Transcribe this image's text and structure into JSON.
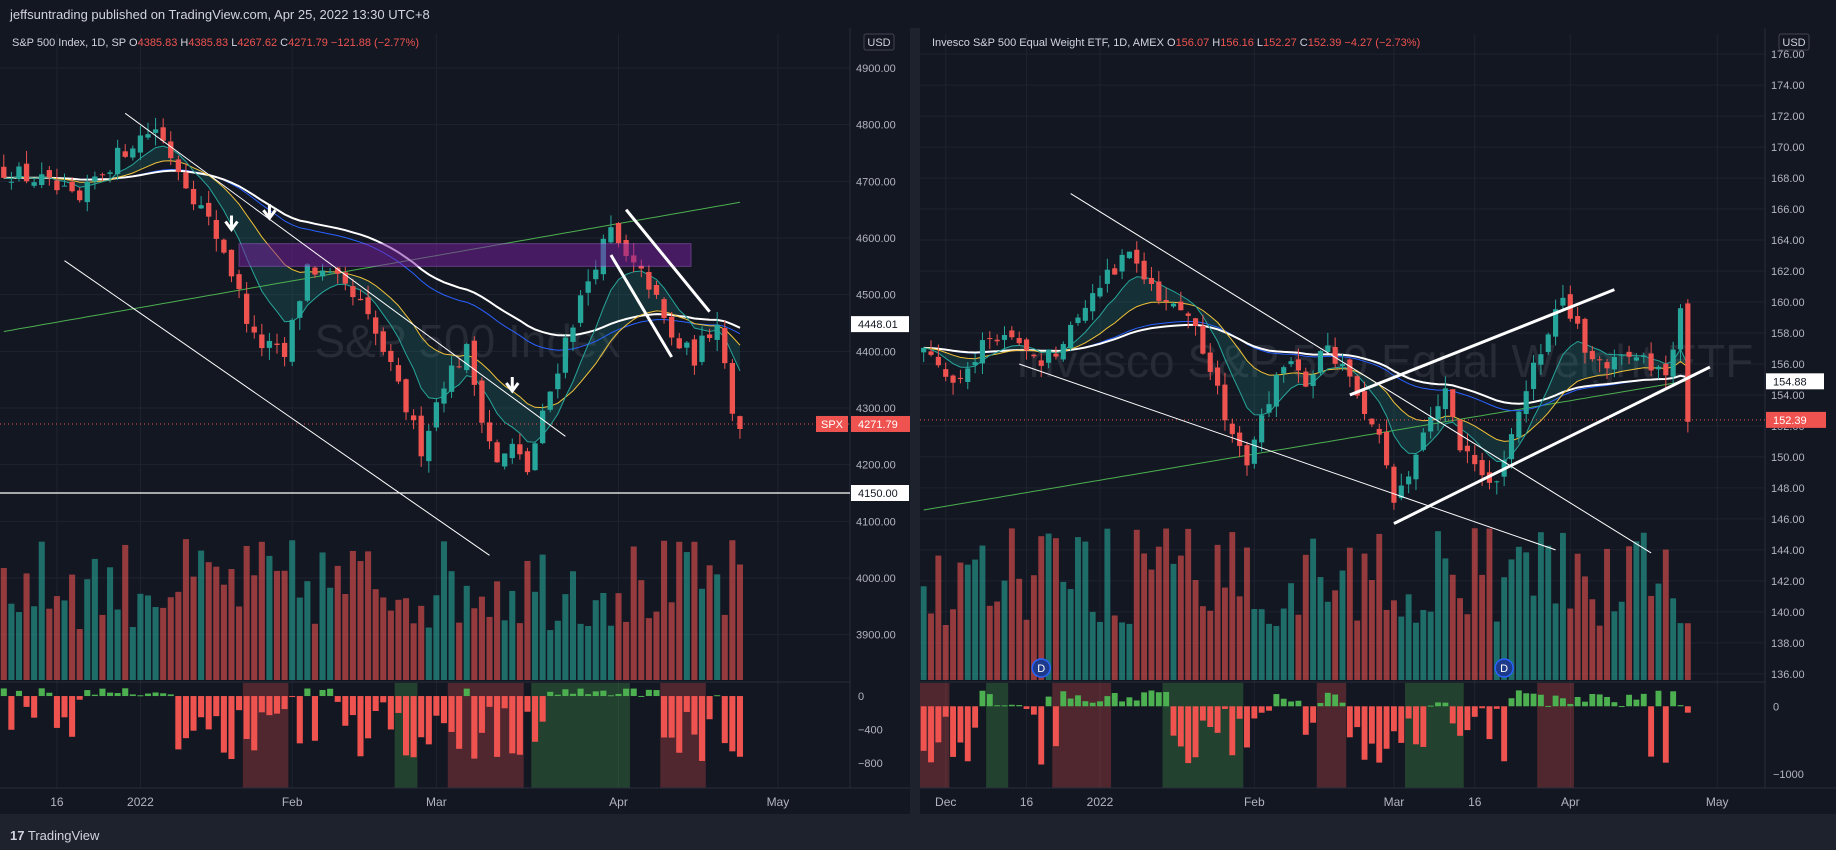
{
  "header": {
    "published": "jeffsuntrading published on TradingView.com, Apr 25, 2022 13:30 UTC+8"
  },
  "footer": {
    "logo_text": "TradingView"
  },
  "chart_data": [
    {
      "type": "candlestick",
      "legend": {
        "name": "S&P 500 Index, 1D, SP",
        "open_label": "O",
        "open": "4385.83",
        "high_label": "H",
        "high": "4385.83",
        "low_label": "L",
        "low": "4267.62",
        "close_label": "C",
        "close": "4271.79",
        "change": "−121.88 (−2.77%)"
      },
      "watermark": "S&P 500 Index",
      "currency": "USD",
      "price_axis": {
        "min": 3820,
        "max": 4960,
        "ticks": [
          3900,
          4000,
          4100,
          4200,
          4300,
          4400,
          4500,
          4600,
          4700,
          4800,
          4900
        ],
        "tick_labels": [
          "3900.00",
          "4000.00",
          "4100.00",
          "4200.00",
          "4300.00",
          "4400.00",
          "4500.00",
          "4600.00",
          "4700.00",
          "4800.00",
          "4900.00"
        ]
      },
      "price_tags": [
        {
          "label": "4448.01",
          "value": 4448.01,
          "style": "white"
        },
        {
          "label": "4150.00",
          "value": 4150,
          "style": "white"
        },
        {
          "symbol": "SPX",
          "label": "4271.79",
          "value": 4271.79,
          "style": "red"
        }
      ],
      "osc_axis": {
        "min": -1050,
        "max": 120,
        "ticks": [
          0,
          -400,
          -800
        ],
        "tick_labels": [
          "0",
          "−400",
          "−800"
        ]
      },
      "time_labels": [
        {
          "label": "16",
          "index": 7
        },
        {
          "label": "2022",
          "index": 18
        },
        {
          "label": "Feb",
          "index": 38
        },
        {
          "label": "Mar",
          "index": 57
        },
        {
          "label": "Apr",
          "index": 81
        },
        {
          "label": "May",
          "index": 102
        }
      ],
      "x_count": 112,
      "anchors": [
        [
          0,
          4720
        ],
        [
          5,
          4700
        ],
        [
          10,
          4660
        ],
        [
          12,
          4705
        ],
        [
          17,
          4770
        ],
        [
          20,
          4795
        ],
        [
          24,
          4700
        ],
        [
          29,
          4580
        ],
        [
          33,
          4420
        ],
        [
          37,
          4390
        ],
        [
          40,
          4550
        ],
        [
          44,
          4520
        ],
        [
          47,
          4480
        ],
        [
          50,
          4400
        ],
        [
          53,
          4300
        ],
        [
          55,
          4230
        ],
        [
          58,
          4350
        ],
        [
          61,
          4400
        ],
        [
          63,
          4290
        ],
        [
          65,
          4200
        ],
        [
          67,
          4230
        ],
        [
          69,
          4190
        ],
        [
          72,
          4330
        ],
        [
          74,
          4420
        ],
        [
          78,
          4560
        ],
        [
          80,
          4610
        ],
        [
          82,
          4560
        ],
        [
          85,
          4520
        ],
        [
          88,
          4420
        ],
        [
          91,
          4390
        ],
        [
          94,
          4460
        ],
        [
          96,
          4300
        ],
        [
          97,
          4272
        ]
      ],
      "bands": [
        [
          32,
          37
        ],
        [
          52,
          54
        ],
        [
          59,
          68
        ],
        [
          70,
          82
        ],
        [
          87,
          92
        ]
      ],
      "horizontal_level": 4150
    },
    {
      "type": "candlestick",
      "legend": {
        "name": "Invesco S&P 500 Equal Weight ETF, 1D, AMEX",
        "open_label": "O",
        "open": "156.07",
        "high_label": "H",
        "high": "156.16",
        "low_label": "L",
        "low": "152.27",
        "close_label": "C",
        "close": "152.39",
        "change": "−4.27 (−2.73%)"
      },
      "watermark": "Invesco S&P 500 Equal Weight ETF",
      "currency": "USD",
      "price_axis": {
        "min": 135.6,
        "max": 177.3,
        "ticks": [
          136,
          138,
          140,
          142,
          144,
          146,
          148,
          150,
          152,
          154,
          156,
          158,
          160,
          162,
          164,
          166,
          168,
          170,
          172,
          174,
          176
        ],
        "tick_labels": [
          "136.00",
          "138.00",
          "140.00",
          "142.00",
          "144.00",
          "146.00",
          "148.00",
          "150.00",
          "152.00",
          "154.00",
          "156.00",
          "158.00",
          "160.00",
          "162.00",
          "164.00",
          "166.00",
          "168.00",
          "170.00",
          "172.00",
          "174.00",
          "176.00"
        ]
      },
      "price_tags": [
        {
          "label": "154.88",
          "value": 154.88,
          "style": "white"
        },
        {
          "symbol": "",
          "label": "152.39",
          "value": 152.39,
          "style": "red"
        }
      ],
      "osc_axis": {
        "min": -1150,
        "max": 300,
        "ticks": [
          0,
          -1000
        ],
        "tick_labels": [
          "0",
          "−1000"
        ]
      },
      "time_labels": [
        {
          "label": "Dec",
          "index": 3
        },
        {
          "label": "16",
          "index": 14
        },
        {
          "label": "2022",
          "index": 24
        },
        {
          "label": "Feb",
          "index": 45
        },
        {
          "label": "Mar",
          "index": 64
        },
        {
          "label": "16",
          "index": 75
        },
        {
          "label": "Apr",
          "index": 88
        },
        {
          "label": "May",
          "index": 108
        }
      ],
      "x_count": 115,
      "anchors": [
        [
          0,
          157
        ],
        [
          4,
          155
        ],
        [
          8,
          157
        ],
        [
          12,
          158
        ],
        [
          15,
          156
        ],
        [
          18,
          157
        ],
        [
          22,
          160
        ],
        [
          25,
          162
        ],
        [
          28,
          163
        ],
        [
          31,
          161
        ],
        [
          34,
          160
        ],
        [
          36,
          159
        ],
        [
          38,
          157
        ],
        [
          40,
          154
        ],
        [
          42,
          151
        ],
        [
          44,
          150
        ],
        [
          46,
          153
        ],
        [
          49,
          156
        ],
        [
          52,
          155
        ],
        [
          55,
          157
        ],
        [
          58,
          155
        ],
        [
          60,
          153
        ],
        [
          62,
          151
        ],
        [
          64,
          147
        ],
        [
          66,
          149
        ],
        [
          68,
          152
        ],
        [
          71,
          154
        ],
        [
          73,
          151
        ],
        [
          75,
          149
        ],
        [
          77,
          148
        ],
        [
          79,
          150
        ],
        [
          82,
          154
        ],
        [
          84,
          157
        ],
        [
          87,
          160
        ],
        [
          89,
          158
        ],
        [
          92,
          156
        ],
        [
          95,
          157
        ],
        [
          98,
          156
        ],
        [
          101,
          155
        ],
        [
          103,
          159
        ],
        [
          104,
          152.39
        ]
      ],
      "bands": [
        [
          0,
          3
        ],
        [
          9,
          11
        ],
        [
          18,
          25
        ],
        [
          33,
          43
        ],
        [
          54,
          57
        ],
        [
          66,
          73
        ],
        [
          84,
          88
        ]
      ],
      "div_markers": [
        {
          "label": "D",
          "index": 16
        },
        {
          "label": "D",
          "index": 79
        }
      ]
    }
  ]
}
